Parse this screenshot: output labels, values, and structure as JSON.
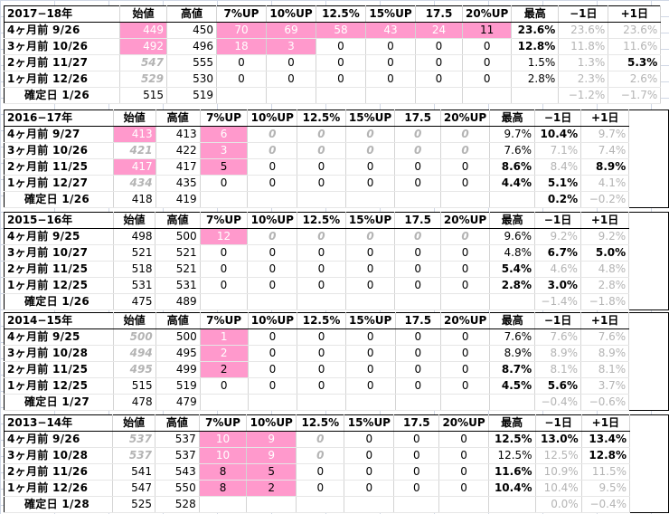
{
  "headers": {
    "start": "始値",
    "high": "高値",
    "up7": "7%UP",
    "up10": "10%UP",
    "up12": "12.5%",
    "up15": "15%UP",
    "up17": "17.5",
    "up20": "20%UP",
    "max": "最高",
    "minus1": "−1日",
    "plus1": "+1日"
  },
  "blocks": [
    {
      "period": "2017−18年",
      "rows": [
        {
          "label": "4ヶ月前 9/26",
          "start": "449",
          "high": "450",
          "p7": "70",
          "p10": "69",
          "p12": "58",
          "p15": "43",
          "p17": "24",
          "p20": "11",
          "max": "23.6%",
          "minus1": "23.6%",
          "plus1": "23.6%"
        },
        {
          "label": "3ヶ月前 10/26",
          "start": "492",
          "high": "496",
          "p7": "18",
          "p10": "3",
          "p12": "0",
          "p15": "0",
          "p17": "0",
          "p20": "0",
          "max": "12.8%",
          "minus1": "11.8%",
          "plus1": "11.6%"
        },
        {
          "label": "2ヶ月前 11/27",
          "start": "547",
          "high": "555",
          "p7": "0",
          "p10": "0",
          "p12": "0",
          "p15": "0",
          "p17": "0",
          "p20": "0",
          "max": "1.5%",
          "minus1": "1.3%",
          "plus1": "5.3%"
        },
        {
          "label": "1ヶ月前 12/26",
          "start": "529",
          "high": "530",
          "p7": "0",
          "p10": "0",
          "p12": "0",
          "p15": "0",
          "p17": "0",
          "p20": "0",
          "max": "2.8%",
          "minus1": "2.3%",
          "plus1": "2.6%"
        },
        {
          "label": "確定日 1/26",
          "start": "515",
          "high": "519",
          "p7": "",
          "p10": "",
          "p12": "",
          "p15": "",
          "p17": "",
          "p20": "",
          "max": "",
          "minus1": "−1.2%",
          "plus1": "−1.7%"
        }
      ]
    },
    {
      "period": "2016−17年",
      "rows": [
        {
          "label": "4ヶ月前 9/27",
          "start": "413",
          "high": "413",
          "p7": "6",
          "p10": "0",
          "p12": "0",
          "p15": "0",
          "p17": "0",
          "p20": "0",
          "max": "9.7%",
          "minus1": "10.4%",
          "plus1": "9.7%"
        },
        {
          "label": "3ヶ月前 10/26",
          "start": "421",
          "high": "422",
          "p7": "3",
          "p10": "0",
          "p12": "0",
          "p15": "0",
          "p17": "0",
          "p20": "0",
          "max": "7.6%",
          "minus1": "7.1%",
          "plus1": "7.4%"
        },
        {
          "label": "2ヶ月前 11/25",
          "start": "417",
          "high": "417",
          "p7": "5",
          "p10": "0",
          "p12": "0",
          "p15": "0",
          "p17": "0",
          "p20": "0",
          "max": "8.6%",
          "minus1": "8.4%",
          "plus1": "8.9%"
        },
        {
          "label": "1ヶ月前 12/27",
          "start": "434",
          "high": "435",
          "p7": "0",
          "p10": "0",
          "p12": "0",
          "p15": "0",
          "p17": "0",
          "p20": "0",
          "max": "4.4%",
          "minus1": "5.1%",
          "plus1": "4.1%"
        },
        {
          "label": "確定日 1/26",
          "start": "418",
          "high": "419",
          "p7": "",
          "p10": "",
          "p12": "",
          "p15": "",
          "p17": "",
          "p20": "",
          "max": "",
          "minus1": "0.2%",
          "plus1": "−0.2%"
        }
      ]
    },
    {
      "period": "2015−16年",
      "rows": [
        {
          "label": "4ヶ月前 9/25",
          "start": "498",
          "high": "500",
          "p7": "12",
          "p10": "0",
          "p12": "0",
          "p15": "0",
          "p17": "0",
          "p20": "0",
          "max": "9.6%",
          "minus1": "9.2%",
          "plus1": "9.2%"
        },
        {
          "label": "3ヶ月前 10/27",
          "start": "521",
          "high": "521",
          "p7": "0",
          "p10": "0",
          "p12": "0",
          "p15": "0",
          "p17": "0",
          "p20": "0",
          "max": "4.8%",
          "minus1": "6.7%",
          "plus1": "5.0%"
        },
        {
          "label": "2ヶ月前 11/25",
          "start": "518",
          "high": "521",
          "p7": "0",
          "p10": "0",
          "p12": "0",
          "p15": "0",
          "p17": "0",
          "p20": "0",
          "max": "5.4%",
          "minus1": "4.6%",
          "plus1": "4.8%"
        },
        {
          "label": "1ヶ月前 12/25",
          "start": "531",
          "high": "531",
          "p7": "0",
          "p10": "0",
          "p12": "0",
          "p15": "0",
          "p17": "0",
          "p20": "0",
          "max": "2.8%",
          "minus1": "3.0%",
          "plus1": "2.8%"
        },
        {
          "label": "確定日 1/26",
          "start": "475",
          "high": "489",
          "p7": "",
          "p10": "",
          "p12": "",
          "p15": "",
          "p17": "",
          "p20": "",
          "max": "",
          "minus1": "−1.4%",
          "plus1": "−1.8%"
        }
      ]
    },
    {
      "period": "2014−15年",
      "rows": [
        {
          "label": "4ヶ月前 9/25",
          "start": "500",
          "high": "500",
          "p7": "1",
          "p10": "0",
          "p12": "0",
          "p15": "0",
          "p17": "0",
          "p20": "0",
          "max": "7.6%",
          "minus1": "7.6%",
          "plus1": "7.6%"
        },
        {
          "label": "3ヶ月前 10/28",
          "start": "494",
          "high": "495",
          "p7": "2",
          "p10": "0",
          "p12": "0",
          "p15": "0",
          "p17": "0",
          "p20": "0",
          "max": "8.9%",
          "minus1": "8.9%",
          "plus1": "8.9%"
        },
        {
          "label": "2ヶ月前 11/25",
          "start": "495",
          "high": "499",
          "p7": "2",
          "p10": "0",
          "p12": "0",
          "p15": "0",
          "p17": "0",
          "p20": "0",
          "max": "8.7%",
          "minus1": "8.1%",
          "plus1": "8.1%"
        },
        {
          "label": "1ヶ月前 12/25",
          "start": "515",
          "high": "519",
          "p7": "0",
          "p10": "0",
          "p12": "0",
          "p15": "0",
          "p17": "0",
          "p20": "0",
          "max": "4.5%",
          "minus1": "5.6%",
          "plus1": "3.7%"
        },
        {
          "label": "確定日 1/27",
          "start": "478",
          "high": "479",
          "p7": "",
          "p10": "",
          "p12": "",
          "p15": "",
          "p17": "",
          "p20": "",
          "max": "",
          "minus1": "−0.4%",
          "plus1": "−0.6%"
        }
      ]
    },
    {
      "period": "2013−14年",
      "rows": [
        {
          "label": "4ヶ月前 9/26",
          "start": "537",
          "high": "537",
          "p7": "10",
          "p10": "9",
          "p12": "0",
          "p15": "0",
          "p17": "0",
          "p20": "0",
          "max": "12.5%",
          "minus1": "13.0%",
          "plus1": "13.4%"
        },
        {
          "label": "3ヶ月前 10/28",
          "start": "537",
          "high": "537",
          "p7": "10",
          "p10": "9",
          "p12": "0",
          "p15": "0",
          "p17": "0",
          "p20": "0",
          "max": "12.5%",
          "minus1": "12.5%",
          "plus1": "12.8%"
        },
        {
          "label": "2ヶ月前 11/26",
          "start": "541",
          "high": "543",
          "p7": "8",
          "p10": "5",
          "p12": "0",
          "p15": "0",
          "p17": "0",
          "p20": "0",
          "max": "11.6%",
          "minus1": "10.9%",
          "plus1": "11.5%"
        },
        {
          "label": "1ヶ月前 12/26",
          "start": "547",
          "high": "550",
          "p7": "8",
          "p10": "2",
          "p12": "0",
          "p15": "0",
          "p17": "0",
          "p20": "0",
          "max": "10.4%",
          "minus1": "10.4%",
          "plus1": "9.5%"
        },
        {
          "label": "確定日 1/28",
          "start": "525",
          "high": "528",
          "p7": "",
          "p10": "",
          "p12": "",
          "p15": "",
          "p17": "",
          "p20": "",
          "max": "",
          "minus1": "0.0%",
          "plus1": "−0.4%"
        }
      ]
    }
  ],
  "colors": {
    "highlight_fill": "#ff99cc",
    "muted_text": "#b4b4b4",
    "gridline": "#d0d7e5"
  }
}
